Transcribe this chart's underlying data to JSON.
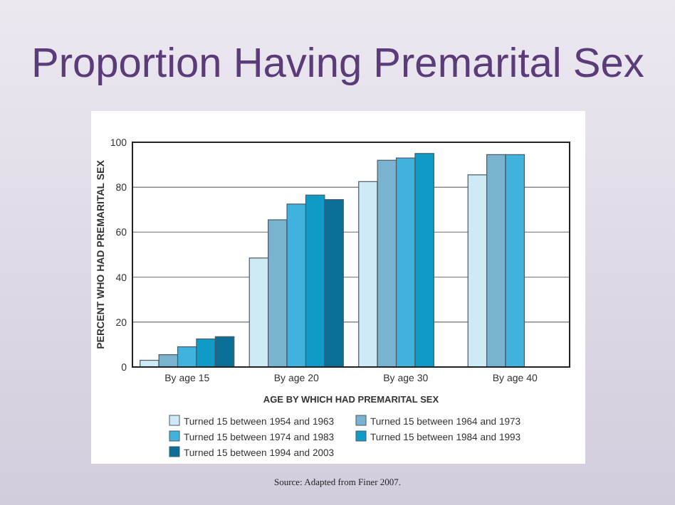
{
  "chart_data": {
    "type": "bar",
    "title": "Proportion Having Premarital Sex",
    "xlabel": "AGE BY WHICH HAD PREMARITAL SEX",
    "ylabel": "PERCENT WHO HAD PREMARITAL SEX",
    "annotations": [
      "Source: Adapted from Finer 2007."
    ],
    "categories": [
      "By age 15",
      "By age 20",
      "By age 30",
      "By age 40"
    ],
    "series": [
      {
        "name": "Turned 15 between 1954 and 1963",
        "color": "#cdeaf5",
        "values": [
          3,
          48.5,
          82.5,
          85.5
        ]
      },
      {
        "name": "Turned 15 between 1964 and 1973",
        "color": "#7ab3cf",
        "values": [
          5.5,
          65.5,
          92,
          94.5
        ]
      },
      {
        "name": "Turned 15 between 1974 and 1983",
        "color": "#3fb3dd",
        "values": [
          9,
          72.5,
          93,
          94.5
        ]
      },
      {
        "name": "Turned 15 between 1984 and 1993",
        "color": "#0f9ac8",
        "values": [
          12.5,
          76.5,
          95,
          null
        ]
      },
      {
        "name": "Turned 15 between 1994 and 2003",
        "color": "#0a6e96",
        "values": [
          13.5,
          74.5,
          null,
          null
        ]
      }
    ],
    "ylim": [
      0,
      100
    ],
    "yticks": [
      0,
      20,
      40,
      60,
      80,
      100
    ],
    "grid": "y",
    "legend": "bottom"
  }
}
